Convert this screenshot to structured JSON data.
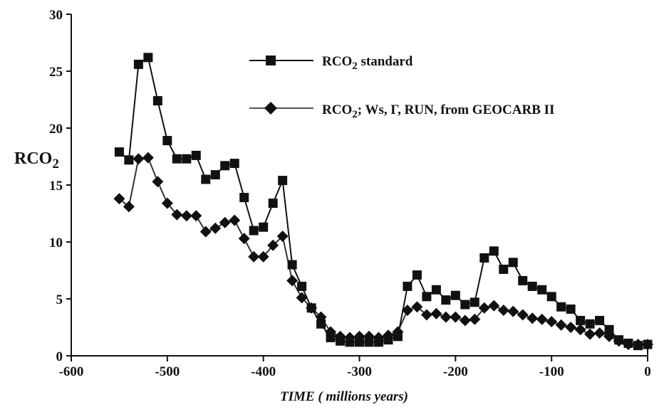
{
  "chart_data": {
    "type": "line",
    "title": "",
    "xlabel": "TIME ( millions years)",
    "ylabel": "RCO2",
    "xlim": [
      -600,
      0
    ],
    "ylim": [
      0,
      30
    ],
    "xticks": [
      -600,
      -500,
      -400,
      -300,
      -200,
      -100,
      0
    ],
    "yticks": [
      0,
      5,
      10,
      15,
      20,
      25,
      30
    ],
    "xtick_labels": [
      "-600",
      "-500",
      "-400",
      "-300",
      "-200",
      "-100",
      "0"
    ],
    "ytick_labels": [
      "0",
      "5",
      "10",
      "15",
      "20",
      "25",
      "30"
    ],
    "grid": false,
    "legend_position": "top-right",
    "x": [
      -550,
      -540,
      -530,
      -520,
      -510,
      -500,
      -490,
      -480,
      -470,
      -460,
      -450,
      -440,
      -430,
      -420,
      -410,
      -400,
      -390,
      -380,
      -370,
      -360,
      -350,
      -340,
      -330,
      -320,
      -310,
      -300,
      -290,
      -280,
      -270,
      -260,
      -250,
      -240,
      -230,
      -220,
      -210,
      -200,
      -190,
      -180,
      -170,
      -160,
      -150,
      -140,
      -130,
      -120,
      -110,
      -100,
      -90,
      -80,
      -70,
      -60,
      -50,
      -40,
      -30,
      -20,
      -10,
      0
    ],
    "series": [
      {
        "name": "RCO2 standard",
        "marker": "square",
        "values": [
          17.9,
          17.2,
          25.6,
          26.2,
          22.4,
          18.9,
          17.3,
          17.3,
          17.6,
          15.5,
          15.9,
          16.7,
          16.9,
          13.9,
          11.0,
          11.3,
          13.4,
          15.4,
          8.0,
          6.1,
          4.2,
          2.8,
          1.6,
          1.3,
          1.2,
          1.2,
          1.2,
          1.2,
          1.4,
          1.7,
          6.1,
          7.1,
          5.2,
          5.8,
          4.9,
          5.3,
          4.5,
          4.7,
          8.6,
          9.2,
          7.6,
          8.2,
          6.6,
          6.1,
          5.8,
          5.2,
          4.3,
          4.1,
          3.1,
          2.8,
          3.1,
          2.3,
          1.4,
          1.1,
          0.9,
          1.0
        ]
      },
      {
        "name": "RCO2; Ws, Γ, RUN, from GEOCARB II",
        "marker": "diamond",
        "values": [
          13.8,
          13.1,
          17.3,
          17.4,
          15.3,
          13.4,
          12.4,
          12.3,
          12.3,
          10.9,
          11.2,
          11.7,
          11.9,
          10.3,
          8.7,
          8.7,
          9.7,
          10.5,
          6.6,
          5.1,
          4.2,
          3.4,
          2.1,
          1.7,
          1.6,
          1.7,
          1.7,
          1.6,
          1.8,
          2.1,
          4.0,
          4.3,
          3.6,
          3.7,
          3.4,
          3.4,
          3.1,
          3.2,
          4.2,
          4.4,
          4.0,
          3.9,
          3.6,
          3.3,
          3.2,
          3.0,
          2.7,
          2.5,
          2.3,
          1.9,
          2.0,
          1.7,
          1.3,
          1.0,
          1.0,
          1.0
        ]
      }
    ],
    "legend": [
      {
        "base": "RCO",
        "sub": "2",
        "rest": " standard"
      },
      {
        "base": "RCO",
        "sub": "2",
        "rest": "; Ws, Γ, RUN, from GEOCARB II"
      }
    ],
    "ylabel_parts": {
      "base": "RCO",
      "sub": "2"
    }
  }
}
